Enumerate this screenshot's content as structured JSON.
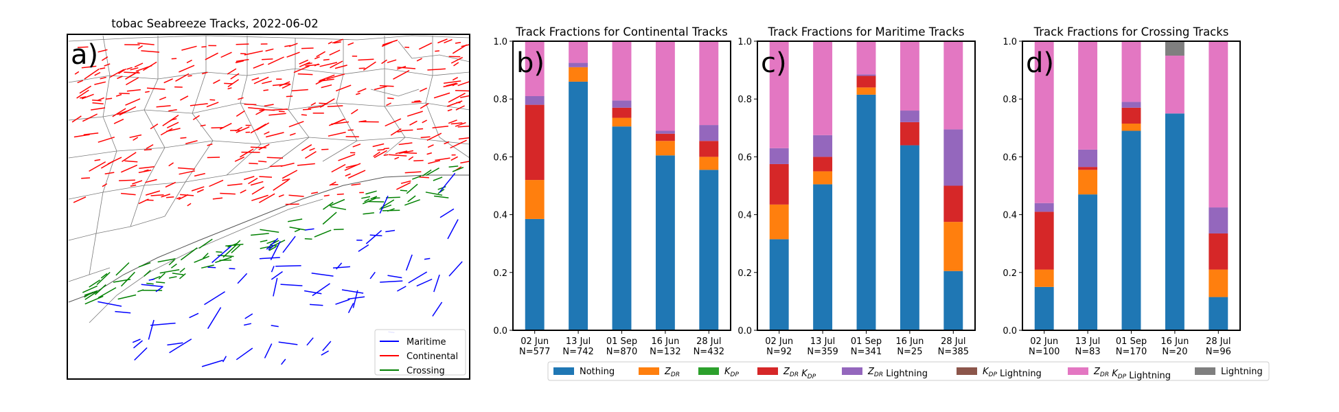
{
  "map": {
    "title": "tobac Seabreeze Tracks, 2022-06-02",
    "panel_label": "a)",
    "legend": [
      {
        "name": "Maritime",
        "color": "#0000ff"
      },
      {
        "name": "Continental",
        "color": "#ff0000"
      },
      {
        "name": "Crossing",
        "color": "#008000"
      }
    ]
  },
  "legend": {
    "items": [
      {
        "label": "Nothing",
        "color": "#1f77b4"
      },
      {
        "label": "Z_DR",
        "color": "#ff7f0e"
      },
      {
        "label": "K_DP",
        "color": "#2ca02c"
      },
      {
        "label": "Z_DR K_DP",
        "color": "#d62728"
      },
      {
        "label": "Z_DR Lightning",
        "color": "#9467bd"
      },
      {
        "label": "K_DP Lightning",
        "color": "#8c564b"
      },
      {
        "label": "Z_DR K_DP Lightning",
        "color": "#e377c2"
      },
      {
        "label": "Lightning",
        "color": "#7f7f7f"
      }
    ]
  },
  "chart_data": [
    {
      "type": "bar",
      "stacked": true,
      "panel_label": "b)",
      "title": "Track Fractions for Continental Tracks",
      "categories": [
        "02 Jun",
        "13 Jul",
        "01 Sep",
        "16 Jun",
        "28 Jul"
      ],
      "counts": [
        "N=577",
        "N=742",
        "N=870",
        "N=132",
        "N=432"
      ],
      "ylim": [
        0,
        1.0
      ],
      "yticks": [
        "0.0",
        "0.2",
        "0.4",
        "0.6",
        "0.8",
        "1.0"
      ],
      "series": [
        {
          "name": "Nothing",
          "values": [
            0.385,
            0.86,
            0.705,
            0.605,
            0.555
          ]
        },
        {
          "name": "Z_DR",
          "values": [
            0.135,
            0.05,
            0.03,
            0.05,
            0.045
          ]
        },
        {
          "name": "K_DP",
          "values": [
            0.0,
            0.0,
            0.0,
            0.0,
            0.0
          ]
        },
        {
          "name": "Z_DR K_DP",
          "values": [
            0.26,
            0.0,
            0.035,
            0.025,
            0.055
          ]
        },
        {
          "name": "Z_DR Lightning",
          "values": [
            0.03,
            0.015,
            0.025,
            0.01,
            0.055
          ]
        },
        {
          "name": "K_DP Lightning",
          "values": [
            0.0,
            0.0,
            0.0,
            0.0,
            0.0
          ]
        },
        {
          "name": "Z_DR K_DP Lightning",
          "values": [
            0.19,
            0.075,
            0.205,
            0.31,
            0.29
          ]
        },
        {
          "name": "Lightning",
          "values": [
            0.0,
            0.0,
            0.0,
            0.0,
            0.0
          ]
        }
      ]
    },
    {
      "type": "bar",
      "stacked": true,
      "panel_label": "c)",
      "title": "Track Fractions for Maritime Tracks",
      "categories": [
        "02 Jun",
        "13 Jul",
        "01 Sep",
        "16 Jun",
        "28 Jul"
      ],
      "counts": [
        "N=92",
        "N=359",
        "N=341",
        "N=25",
        "N=385"
      ],
      "ylim": [
        0,
        1.0
      ],
      "yticks": [
        "0.0",
        "0.2",
        "0.4",
        "0.6",
        "0.8",
        "1.0"
      ],
      "series": [
        {
          "name": "Nothing",
          "values": [
            0.315,
            0.505,
            0.815,
            0.64,
            0.205
          ]
        },
        {
          "name": "Z_DR",
          "values": [
            0.12,
            0.045,
            0.025,
            0.0,
            0.17
          ]
        },
        {
          "name": "K_DP",
          "values": [
            0.0,
            0.0,
            0.0,
            0.0,
            0.0
          ]
        },
        {
          "name": "Z_DR K_DP",
          "values": [
            0.14,
            0.05,
            0.04,
            0.08,
            0.125
          ]
        },
        {
          "name": "Z_DR Lightning",
          "values": [
            0.055,
            0.075,
            0.005,
            0.04,
            0.195
          ]
        },
        {
          "name": "K_DP Lightning",
          "values": [
            0.0,
            0.0,
            0.0,
            0.0,
            0.0
          ]
        },
        {
          "name": "Z_DR K_DP Lightning",
          "values": [
            0.37,
            0.325,
            0.115,
            0.24,
            0.305
          ]
        },
        {
          "name": "Lightning",
          "values": [
            0.0,
            0.0,
            0.0,
            0.0,
            0.0
          ]
        }
      ]
    },
    {
      "type": "bar",
      "stacked": true,
      "panel_label": "d)",
      "title": "Track Fractions for Crossing Tracks",
      "categories": [
        "02 Jun",
        "13 Jul",
        "01 Sep",
        "16 Jun",
        "28 Jul"
      ],
      "counts": [
        "N=100",
        "N=83",
        "N=170",
        "N=20",
        "N=96"
      ],
      "ylim": [
        0,
        1.0
      ],
      "yticks": [
        "0.0",
        "0.2",
        "0.4",
        "0.6",
        "0.8",
        "1.0"
      ],
      "series": [
        {
          "name": "Nothing",
          "values": [
            0.15,
            0.47,
            0.69,
            0.75,
            0.115
          ]
        },
        {
          "name": "Z_DR",
          "values": [
            0.06,
            0.085,
            0.025,
            0.0,
            0.095
          ]
        },
        {
          "name": "K_DP",
          "values": [
            0.0,
            0.0,
            0.0,
            0.0,
            0.0
          ]
        },
        {
          "name": "Z_DR K_DP",
          "values": [
            0.2,
            0.01,
            0.055,
            0.0,
            0.125
          ]
        },
        {
          "name": "Z_DR Lightning",
          "values": [
            0.03,
            0.06,
            0.02,
            0.0,
            0.09
          ]
        },
        {
          "name": "K_DP Lightning",
          "values": [
            0.0,
            0.0,
            0.0,
            0.0,
            0.0
          ]
        },
        {
          "name": "Z_DR K_DP Lightning",
          "values": [
            0.56,
            0.375,
            0.21,
            0.2,
            0.575
          ]
        },
        {
          "name": "Lightning",
          "values": [
            0.0,
            0.0,
            0.0,
            0.05,
            0.0
          ]
        }
      ]
    }
  ]
}
